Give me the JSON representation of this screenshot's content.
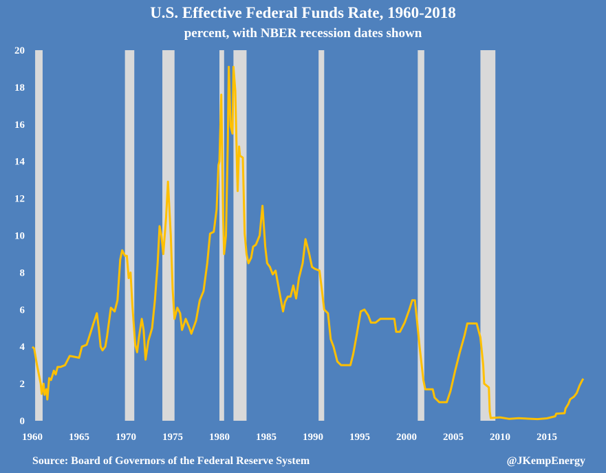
{
  "chart_data": {
    "type": "line",
    "title": "U.S. Effective Federal Funds Rate, 1960-2018",
    "subtitle": "percent, with NBER recession dates shown",
    "source": "Source: Board of Governors of the Federal Reserve System",
    "credit": "@JKempEnergy",
    "xlim": [
      1960,
      2019
    ],
    "ylim": [
      0,
      20
    ],
    "x_ticks": [
      1960,
      1965,
      1970,
      1975,
      1980,
      1985,
      1990,
      1995,
      2000,
      2005,
      2010,
      2015
    ],
    "y_ticks": [
      0,
      2,
      4,
      6,
      8,
      10,
      12,
      14,
      16,
      18,
      20
    ],
    "grid": false,
    "colors": {
      "background": "#4f81bd",
      "line": "#ffc000",
      "recession": "#d9d9d9"
    },
    "recessions": [
      [
        1960.3,
        1961.1
      ],
      [
        1969.9,
        1970.9
      ],
      [
        1973.9,
        1975.2
      ],
      [
        1980.0,
        1980.5
      ],
      [
        1981.5,
        1982.9
      ],
      [
        1990.6,
        1991.2
      ],
      [
        2001.2,
        2001.9
      ],
      [
        2007.9,
        2009.5
      ]
    ],
    "series": [
      {
        "points": [
          [
            1960.0,
            3.99
          ],
          [
            1960.2,
            3.9
          ],
          [
            1960.5,
            3.0
          ],
          [
            1960.7,
            2.5
          ],
          [
            1960.9,
            2.0
          ],
          [
            1961.0,
            1.45
          ],
          [
            1961.2,
            2.0
          ],
          [
            1961.3,
            1.4
          ],
          [
            1961.5,
            1.7
          ],
          [
            1961.6,
            1.15
          ],
          [
            1961.8,
            2.3
          ],
          [
            1962.0,
            2.2
          ],
          [
            1962.3,
            2.7
          ],
          [
            1962.5,
            2.5
          ],
          [
            1962.7,
            2.9
          ],
          [
            1963.0,
            2.9
          ],
          [
            1963.5,
            3.0
          ],
          [
            1963.9,
            3.4
          ],
          [
            1964.0,
            3.5
          ],
          [
            1964.5,
            3.45
          ],
          [
            1965.0,
            3.4
          ],
          [
            1965.3,
            4.0
          ],
          [
            1965.8,
            4.1
          ],
          [
            1966.0,
            4.4
          ],
          [
            1966.5,
            5.2
          ],
          [
            1966.9,
            5.8
          ],
          [
            1967.1,
            5.0
          ],
          [
            1967.3,
            4.0
          ],
          [
            1967.5,
            3.8
          ],
          [
            1967.8,
            4.0
          ],
          [
            1968.0,
            4.6
          ],
          [
            1968.4,
            6.1
          ],
          [
            1968.8,
            5.9
          ],
          [
            1969.1,
            6.5
          ],
          [
            1969.4,
            8.7
          ],
          [
            1969.6,
            9.2
          ],
          [
            1969.9,
            8.9
          ],
          [
            1970.1,
            8.9
          ],
          [
            1970.3,
            7.7
          ],
          [
            1970.5,
            8.0
          ],
          [
            1970.7,
            6.2
          ],
          [
            1971.0,
            4.1
          ],
          [
            1971.2,
            3.7
          ],
          [
            1971.4,
            4.5
          ],
          [
            1971.7,
            5.5
          ],
          [
            1971.9,
            4.9
          ],
          [
            1972.1,
            3.3
          ],
          [
            1972.4,
            4.3
          ],
          [
            1972.8,
            5.0
          ],
          [
            1973.1,
            6.5
          ],
          [
            1973.4,
            8.5
          ],
          [
            1973.6,
            10.5
          ],
          [
            1973.8,
            10.0
          ],
          [
            1974.0,
            9.0
          ],
          [
            1974.3,
            11.0
          ],
          [
            1974.5,
            12.9
          ],
          [
            1974.8,
            10.0
          ],
          [
            1975.0,
            7.1
          ],
          [
            1975.2,
            5.5
          ],
          [
            1975.5,
            6.1
          ],
          [
            1975.8,
            5.8
          ],
          [
            1976.0,
            4.9
          ],
          [
            1976.4,
            5.5
          ],
          [
            1976.8,
            5.0
          ],
          [
            1977.0,
            4.7
          ],
          [
            1977.5,
            5.4
          ],
          [
            1977.9,
            6.5
          ],
          [
            1978.3,
            7.0
          ],
          [
            1978.7,
            8.5
          ],
          [
            1979.0,
            10.1
          ],
          [
            1979.4,
            10.2
          ],
          [
            1979.7,
            11.4
          ],
          [
            1979.9,
            13.8
          ],
          [
            1980.0,
            14.0
          ],
          [
            1980.2,
            17.6
          ],
          [
            1980.4,
            11.0
          ],
          [
            1980.5,
            9.0
          ],
          [
            1980.7,
            10.0
          ],
          [
            1980.9,
            15.0
          ],
          [
            1981.0,
            19.1
          ],
          [
            1981.2,
            15.9
          ],
          [
            1981.4,
            15.5
          ],
          [
            1981.5,
            19.1
          ],
          [
            1981.7,
            17.8
          ],
          [
            1981.9,
            13.3
          ],
          [
            1981.95,
            12.4
          ],
          [
            1982.1,
            14.8
          ],
          [
            1982.2,
            14.3
          ],
          [
            1982.5,
            14.2
          ],
          [
            1982.7,
            10.1
          ],
          [
            1982.9,
            9.0
          ],
          [
            1983.1,
            8.5
          ],
          [
            1983.4,
            8.8
          ],
          [
            1983.6,
            9.4
          ],
          [
            1983.9,
            9.5
          ],
          [
            1984.3,
            10.0
          ],
          [
            1984.6,
            11.6
          ],
          [
            1984.9,
            9.4
          ],
          [
            1985.1,
            8.5
          ],
          [
            1985.4,
            8.3
          ],
          [
            1985.7,
            7.9
          ],
          [
            1986.0,
            8.1
          ],
          [
            1986.4,
            7.0
          ],
          [
            1986.8,
            5.9
          ],
          [
            1987.0,
            6.4
          ],
          [
            1987.3,
            6.7
          ],
          [
            1987.6,
            6.7
          ],
          [
            1987.9,
            7.3
          ],
          [
            1988.2,
            6.6
          ],
          [
            1988.5,
            7.7
          ],
          [
            1988.9,
            8.5
          ],
          [
            1989.2,
            9.8
          ],
          [
            1989.6,
            9.0
          ],
          [
            1989.9,
            8.3
          ],
          [
            1990.2,
            8.2
          ],
          [
            1990.7,
            8.1
          ],
          [
            1990.9,
            7.3
          ],
          [
            1991.2,
            6.0
          ],
          [
            1991.6,
            5.8
          ],
          [
            1991.9,
            4.4
          ],
          [
            1992.2,
            4.0
          ],
          [
            1992.6,
            3.2
          ],
          [
            1993.0,
            3.0
          ],
          [
            1993.5,
            3.0
          ],
          [
            1994.0,
            3.0
          ],
          [
            1994.3,
            3.6
          ],
          [
            1994.7,
            4.7
          ],
          [
            1995.1,
            5.9
          ],
          [
            1995.5,
            6.0
          ],
          [
            1995.9,
            5.7
          ],
          [
            1996.2,
            5.3
          ],
          [
            1996.7,
            5.3
          ],
          [
            1997.2,
            5.5
          ],
          [
            1997.7,
            5.5
          ],
          [
            1998.2,
            5.5
          ],
          [
            1998.7,
            5.5
          ],
          [
            1998.9,
            4.8
          ],
          [
            1999.3,
            4.8
          ],
          [
            1999.8,
            5.3
          ],
          [
            2000.3,
            6.0
          ],
          [
            2000.6,
            6.5
          ],
          [
            2000.9,
            6.5
          ],
          [
            2001.1,
            5.5
          ],
          [
            2001.4,
            4.0
          ],
          [
            2001.8,
            2.2
          ],
          [
            2002.0,
            1.7
          ],
          [
            2002.8,
            1.7
          ],
          [
            2003.0,
            1.25
          ],
          [
            2003.5,
            1.0
          ],
          [
            2004.3,
            1.0
          ],
          [
            2004.7,
            1.6
          ],
          [
            2005.2,
            2.7
          ],
          [
            2005.7,
            3.7
          ],
          [
            2006.2,
            4.6
          ],
          [
            2006.5,
            5.25
          ],
          [
            2007.5,
            5.25
          ],
          [
            2007.9,
            4.5
          ],
          [
            2008.2,
            3.0
          ],
          [
            2008.3,
            2.0
          ],
          [
            2008.8,
            1.8
          ],
          [
            2008.9,
            0.5
          ],
          [
            2009.0,
            0.15
          ],
          [
            2010.0,
            0.18
          ],
          [
            2011.0,
            0.1
          ],
          [
            2012.0,
            0.14
          ],
          [
            2013.0,
            0.11
          ],
          [
            2014.0,
            0.09
          ],
          [
            2015.0,
            0.13
          ],
          [
            2015.9,
            0.24
          ],
          [
            2016.0,
            0.38
          ],
          [
            2016.9,
            0.41
          ],
          [
            2017.0,
            0.66
          ],
          [
            2017.3,
            0.91
          ],
          [
            2017.5,
            1.16
          ],
          [
            2017.9,
            1.3
          ],
          [
            2018.2,
            1.5
          ],
          [
            2018.5,
            1.9
          ],
          [
            2018.8,
            2.2
          ],
          [
            2018.9,
            2.27
          ]
        ]
      }
    ]
  }
}
